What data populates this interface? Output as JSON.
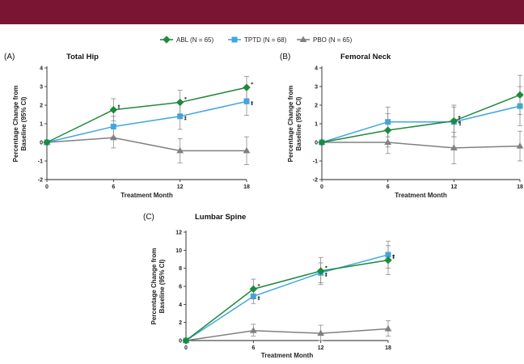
{
  "banner_color": "#7a1633",
  "legend": [
    {
      "label": "ABL (N = 65)",
      "color": "#1e8a3c",
      "marker": "diamond"
    },
    {
      "label": "TPTD (N = 68)",
      "color": "#3fa7e0",
      "marker": "square"
    },
    {
      "label": "PBO (N = 65)",
      "color": "#808080",
      "marker": "triangle"
    }
  ],
  "chart_data": [
    {
      "type": "line",
      "panel": "(A)",
      "title": "Total Hip",
      "xlabel": "Treatment Month",
      "ylabel": [
        "Percentage Change from",
        "Baseline (95% CI)"
      ],
      "x": [
        0,
        6,
        12,
        18
      ],
      "xticks": [
        "0",
        "6",
        "12",
        "18"
      ],
      "ylim": [
        -2,
        4
      ],
      "yticks": [
        "-2",
        "-1",
        "0",
        "1",
        "2",
        "3",
        "4"
      ],
      "series": [
        {
          "name": "ABL (N = 65)",
          "color": "#1e8a3c",
          "marker": "diamond",
          "values": [
            0,
            1.75,
            2.15,
            2.95
          ],
          "ci_low": [
            0,
            1.15,
            1.5,
            2.35
          ],
          "ci_high": [
            0,
            2.35,
            2.8,
            3.55
          ],
          "annotations": [
            "",
            "†",
            "*",
            "*"
          ]
        },
        {
          "name": "TPTD (N = 68)",
          "color": "#3fa7e0",
          "marker": "square",
          "values": [
            0,
            0.85,
            1.4,
            2.2
          ],
          "ci_low": [
            0,
            0.3,
            0.7,
            1.45
          ],
          "ci_high": [
            0,
            1.4,
            2.1,
            2.95
          ],
          "annotations": [
            "",
            "",
            "‡",
            "‡"
          ]
        },
        {
          "name": "PBO (N = 65)",
          "color": "#808080",
          "marker": "triangle",
          "values": [
            0,
            0.25,
            -0.45,
            -0.45
          ],
          "ci_low": [
            0,
            -0.3,
            -1.1,
            -1.2
          ],
          "ci_high": [
            0,
            0.8,
            0.2,
            0.3
          ],
          "annotations": [
            "",
            "",
            "",
            ""
          ]
        }
      ]
    },
    {
      "type": "line",
      "panel": "(B)",
      "title": "Femoral Neck",
      "xlabel": "Treatment Month",
      "ylabel": [
        "Percentage Change from",
        "Baseline (95% CI)"
      ],
      "x": [
        0,
        6,
        12,
        18
      ],
      "xticks": [
        "0",
        "6",
        "12",
        "18"
      ],
      "ylim": [
        -2,
        4
      ],
      "yticks": [
        "-2",
        "-1",
        "0",
        "1",
        "2",
        "3",
        "4"
      ],
      "series": [
        {
          "name": "ABL (N = 65)",
          "color": "#1e8a3c",
          "marker": "diamond",
          "values": [
            0,
            0.65,
            1.15,
            2.55
          ],
          "ci_low": [
            0,
            -0.25,
            0.3,
            1.5
          ],
          "ci_high": [
            0,
            1.55,
            2.0,
            3.6
          ],
          "annotations": [
            "",
            "",
            "†",
            ""
          ]
        },
        {
          "name": "TPTD (N = 68)",
          "color": "#3fa7e0",
          "marker": "square",
          "values": [
            0,
            1.1,
            1.1,
            1.95
          ],
          "ci_low": [
            0,
            0.3,
            0.3,
            0.9
          ],
          "ci_high": [
            0,
            1.9,
            1.9,
            3.0
          ],
          "annotations": [
            "",
            "",
            "¶",
            ""
          ]
        },
        {
          "name": "PBO (N = 65)",
          "color": "#808080",
          "marker": "triangle",
          "values": [
            0,
            0.0,
            -0.3,
            -0.2
          ],
          "ci_low": [
            0,
            -0.6,
            -1.15,
            -1.0
          ],
          "ci_high": [
            0,
            0.6,
            0.55,
            0.6
          ],
          "annotations": [
            "",
            "",
            "",
            ""
          ]
        }
      ]
    },
    {
      "type": "line",
      "panel": "(C)",
      "title": "Lumbar Spine",
      "xlabel": "Treatment Month",
      "ylabel": [
        "Percentage Change from",
        "Baseline (95% CI)"
      ],
      "x": [
        0,
        6,
        12,
        18
      ],
      "xticks": [
        "0",
        "6",
        "12",
        "18"
      ],
      "ylim": [
        0,
        12
      ],
      "yticks": [
        "0",
        "2",
        "4",
        "6",
        "8",
        "10",
        "12"
      ],
      "series": [
        {
          "name": "ABL (N = 65)",
          "color": "#1e8a3c",
          "marker": "diamond",
          "values": [
            0,
            5.7,
            7.7,
            8.9
          ],
          "ci_low": [
            0,
            4.6,
            6.2,
            7.3
          ],
          "ci_high": [
            0,
            6.8,
            9.2,
            10.5
          ],
          "annotations": [
            "",
            "*",
            "*",
            "‡"
          ]
        },
        {
          "name": "TPTD (N = 68)",
          "color": "#3fa7e0",
          "marker": "square",
          "values": [
            0,
            4.9,
            7.5,
            9.5
          ],
          "ci_low": [
            0,
            4.1,
            6.4,
            8.0
          ],
          "ci_high": [
            0,
            5.7,
            8.6,
            11.0
          ],
          "annotations": [
            "",
            "‡",
            "‡",
            "*"
          ]
        },
        {
          "name": "PBO (N = 65)",
          "color": "#808080",
          "marker": "triangle",
          "values": [
            0,
            1.1,
            0.8,
            1.3
          ],
          "ci_low": [
            0,
            0.5,
            0.0,
            0.5
          ],
          "ci_high": [
            0,
            1.8,
            1.7,
            2.2
          ],
          "annotations": [
            "",
            "",
            "",
            ""
          ]
        }
      ]
    }
  ]
}
